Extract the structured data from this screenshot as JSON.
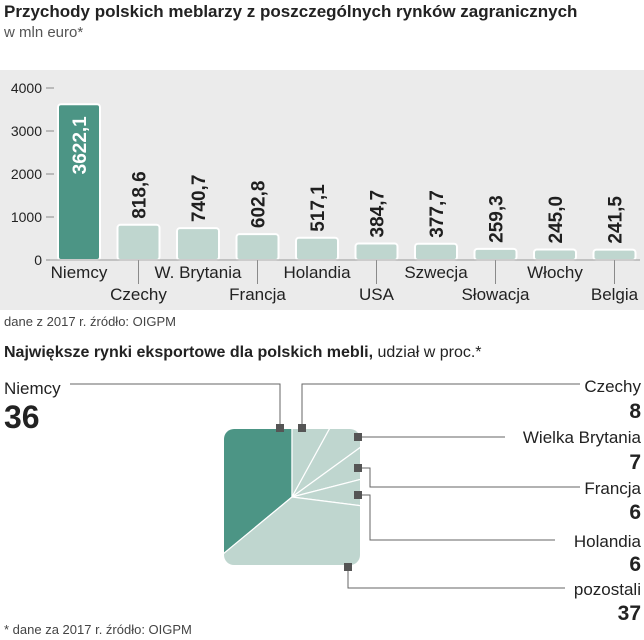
{
  "colors": {
    "dark_teal": "#4c9585",
    "light_teal": "#bfd6cf",
    "background_band": "#ebebeb",
    "text": "#222222",
    "grid": "#d9d9d9"
  },
  "chart_data": [
    {
      "type": "bar",
      "title": "Przychody polskich meblarzy z poszczególnych rynków zagranicznych",
      "subtitle": "w mln euro*",
      "categories": [
        "Niemcy",
        "Czechy",
        "W. Brytania",
        "Francja",
        "Holandia",
        "USA",
        "Szwecja",
        "Słowacja",
        "Włochy",
        "Belgia"
      ],
      "values": [
        3622.1,
        818.6,
        740.7,
        602.8,
        517.1,
        384.7,
        377.7,
        259.3,
        245.0,
        241.5
      ],
      "value_labels": [
        "3622,1",
        "818,6",
        "740,7",
        "602,8",
        "517,1",
        "384,7",
        "377,7",
        "259,3",
        "245,0",
        "241,5"
      ],
      "yticks": [
        0,
        1000,
        2000,
        3000,
        4000
      ],
      "ylim": [
        0,
        4000
      ],
      "highlight_index": 0,
      "source": "dane z 2017 r. źródło: OIGPM"
    },
    {
      "type": "pie",
      "title_bold": "Największe rynki eksportowe dla polskich mebli,",
      "title_rest": " udział w proc.*",
      "slices": [
        {
          "label": "Niemcy",
          "value": 36
        },
        {
          "label": "Czechy",
          "value": 8
        },
        {
          "label": "Wielka Brytania",
          "value": 7
        },
        {
          "label": "Francja",
          "value": 6
        },
        {
          "label": "Holandia",
          "value": 6
        },
        {
          "label": "pozostali",
          "value": 37
        }
      ],
      "source": "* dane za 2017 r. źródło: OIGPM"
    }
  ]
}
